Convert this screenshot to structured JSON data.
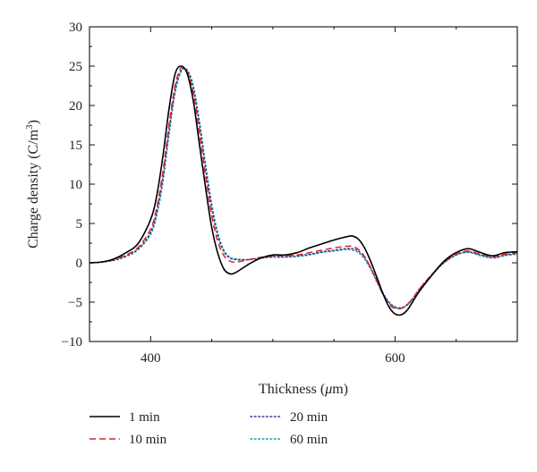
{
  "chart_data": {
    "type": "line",
    "title": "",
    "xlabel_main": "Thickness (",
    "xlabel_unit": "μ",
    "xlabel_end": "m)",
    "ylabel_main": "Charge density (C/m",
    "ylabel_sup": "3",
    "ylabel_end": ")",
    "xlim": [
      350,
      700
    ],
    "ylim": [
      -10,
      30
    ],
    "x_ticks": [
      400,
      600
    ],
    "x_tick_labels": [
      "400",
      "600"
    ],
    "y_ticks": [
      -10,
      -5,
      0,
      5,
      10,
      15,
      20,
      25,
      30
    ],
    "y_tick_labels": [
      "−10",
      "−5",
      "0",
      "5",
      "10",
      "15",
      "20",
      "25",
      "30"
    ],
    "grid": false,
    "legend_position": "bottom",
    "series": [
      {
        "name": "1 min",
        "color": "#000000",
        "dash": "solid",
        "x": [
          350,
          360,
          370,
          380,
          390,
          400,
          405,
          410,
          415,
          420,
          425,
          430,
          435,
          440,
          445,
          450,
          455,
          460,
          465,
          470,
          480,
          490,
          500,
          510,
          520,
          530,
          540,
          550,
          560,
          565,
          570,
          575,
          580,
          585,
          590,
          595,
          600,
          605,
          610,
          615,
          620,
          630,
          640,
          650,
          660,
          670,
          680,
          690,
          700
        ],
        "y": [
          0,
          0.1,
          0.5,
          1.3,
          2.5,
          5.5,
          8.5,
          13.5,
          19.5,
          24,
          25,
          24,
          20.5,
          15,
          9.5,
          4.5,
          1.2,
          -0.8,
          -1.4,
          -1.2,
          -0.2,
          0.6,
          1.0,
          1.0,
          1.3,
          1.9,
          2.4,
          2.9,
          3.3,
          3.4,
          3.0,
          1.9,
          0.2,
          -1.8,
          -3.9,
          -5.6,
          -6.5,
          -6.6,
          -6.0,
          -4.8,
          -3.6,
          -1.6,
          0.2,
          1.3,
          1.8,
          1.3,
          0.9,
          1.3,
          1.4
        ]
      },
      {
        "name": "10 min",
        "color": "#e0202a",
        "dash": "dashed",
        "x": [
          350,
          360,
          370,
          380,
          390,
          400,
          405,
          410,
          415,
          420,
          425,
          430,
          435,
          440,
          445,
          450,
          455,
          460,
          465,
          470,
          480,
          490,
          500,
          510,
          520,
          530,
          540,
          550,
          560,
          565,
          570,
          575,
          580,
          585,
          590,
          595,
          600,
          605,
          610,
          615,
          620,
          630,
          640,
          650,
          660,
          670,
          680,
          690,
          700
        ],
        "y": [
          0,
          0.1,
          0.4,
          1.0,
          2.0,
          4.3,
          7.0,
          11.5,
          17.5,
          22.5,
          24.8,
          24.2,
          21.5,
          16.5,
          11.0,
          6.0,
          2.7,
          0.9,
          0.2,
          0.1,
          0.4,
          0.7,
          0.9,
          0.9,
          1.0,
          1.3,
          1.6,
          1.9,
          2.1,
          2.1,
          1.7,
          0.8,
          -0.6,
          -2.3,
          -4.0,
          -5.3,
          -5.8,
          -5.8,
          -5.3,
          -4.4,
          -3.3,
          -1.5,
          0.1,
          1.1,
          1.5,
          1.1,
          0.8,
          1.1,
          1.3
        ]
      },
      {
        "name": "20 min",
        "color": "#3a3f8f",
        "dash": "dotted",
        "x": [
          350,
          360,
          370,
          380,
          390,
          400,
          405,
          410,
          415,
          420,
          425,
          430,
          435,
          440,
          445,
          450,
          455,
          460,
          465,
          470,
          480,
          490,
          500,
          510,
          520,
          530,
          540,
          550,
          560,
          565,
          570,
          575,
          580,
          585,
          590,
          595,
          600,
          605,
          610,
          615,
          620,
          630,
          640,
          650,
          660,
          670,
          680,
          690,
          700
        ],
        "y": [
          0,
          0.1,
          0.35,
          0.9,
          1.8,
          3.9,
          6.5,
          10.8,
          16.8,
          22.0,
          24.5,
          24.4,
          22.0,
          17.5,
          12.0,
          7.0,
          3.4,
          1.4,
          0.6,
          0.4,
          0.4,
          0.6,
          0.8,
          0.8,
          0.9,
          1.1,
          1.4,
          1.6,
          1.8,
          1.8,
          1.5,
          0.7,
          -0.6,
          -2.2,
          -3.8,
          -5.0,
          -5.6,
          -5.7,
          -5.3,
          -4.4,
          -3.3,
          -1.5,
          0.0,
          1.0,
          1.4,
          1.0,
          0.7,
          1.0,
          1.2
        ]
      },
      {
        "name": "60 min",
        "color": "#1f9aa5",
        "dash": "dotted",
        "x": [
          350,
          360,
          370,
          380,
          390,
          400,
          405,
          410,
          415,
          420,
          425,
          430,
          435,
          440,
          445,
          450,
          455,
          460,
          465,
          470,
          480,
          490,
          500,
          510,
          520,
          530,
          540,
          550,
          560,
          565,
          570,
          575,
          580,
          585,
          590,
          595,
          600,
          605,
          610,
          615,
          620,
          630,
          640,
          650,
          660,
          670,
          680,
          690,
          700
        ],
        "y": [
          0,
          0.1,
          0.3,
          0.8,
          1.7,
          3.6,
          6.0,
          10.2,
          16.2,
          21.5,
          24.3,
          24.5,
          22.5,
          18.0,
          12.5,
          7.5,
          3.8,
          1.6,
          0.7,
          0.5,
          0.4,
          0.6,
          0.7,
          0.7,
          0.8,
          1.0,
          1.3,
          1.5,
          1.7,
          1.6,
          1.3,
          0.5,
          -0.8,
          -2.4,
          -3.9,
          -5.1,
          -5.7,
          -5.8,
          -5.4,
          -4.5,
          -3.4,
          -1.6,
          0.0,
          1.0,
          1.3,
          0.9,
          0.6,
          0.9,
          1.1
        ]
      }
    ]
  }
}
